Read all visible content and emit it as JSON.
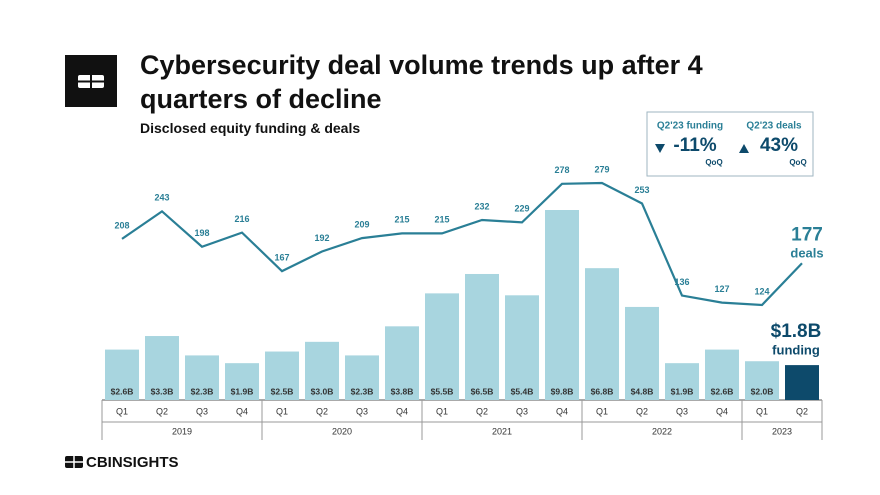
{
  "chart_data": {
    "type": "combo",
    "title": "Cybersecurity deal volume trends up after 4 quarters of decline",
    "subtitle": "Disclosed equity funding & deals",
    "categories": [
      "Q1",
      "Q2",
      "Q3",
      "Q4",
      "Q1",
      "Q2",
      "Q3",
      "Q4",
      "Q1",
      "Q2",
      "Q3",
      "Q4",
      "Q1",
      "Q2",
      "Q3",
      "Q4",
      "Q1",
      "Q2"
    ],
    "groups": [
      {
        "label": "2019",
        "count": 4
      },
      {
        "label": "2020",
        "count": 4
      },
      {
        "label": "2021",
        "count": 4
      },
      {
        "label": "2022",
        "count": 4
      },
      {
        "label": "2023",
        "count": 2
      }
    ],
    "series": [
      {
        "name": "funding",
        "type": "bar",
        "color": "#a8d5df",
        "highlight_color": "#0d4a6b",
        "values": [
          2.6,
          3.3,
          2.3,
          1.9,
          2.5,
          3.0,
          2.3,
          3.8,
          5.5,
          6.5,
          5.4,
          9.8,
          6.8,
          4.8,
          1.9,
          2.6,
          2.0,
          1.8
        ],
        "value_labels": [
          "$2.6B",
          "$3.3B",
          "$2.3B",
          "$1.9B",
          "$2.5B",
          "$3.0B",
          "$2.3B",
          "$3.8B",
          "$5.5B",
          "$6.5B",
          "$5.4B",
          "$9.8B",
          "$6.8B",
          "$4.8B",
          "$1.9B",
          "$2.6B",
          "$2.0B",
          "$1.8B"
        ]
      },
      {
        "name": "deals",
        "type": "line",
        "color": "#2a7f96",
        "values": [
          208,
          243,
          198,
          216,
          167,
          192,
          209,
          215,
          215,
          232,
          229,
          278,
          279,
          253,
          136,
          127,
          124,
          177
        ]
      }
    ],
    "kpis": [
      {
        "label": "Q2'23 funding",
        "value": -11,
        "value_label": "-11%",
        "note": "QoQ"
      },
      {
        "label": "Q2'23 deals",
        "value": 43,
        "value_label": "43%",
        "note": "QoQ"
      }
    ],
    "source": "CBINSIGHTS"
  }
}
